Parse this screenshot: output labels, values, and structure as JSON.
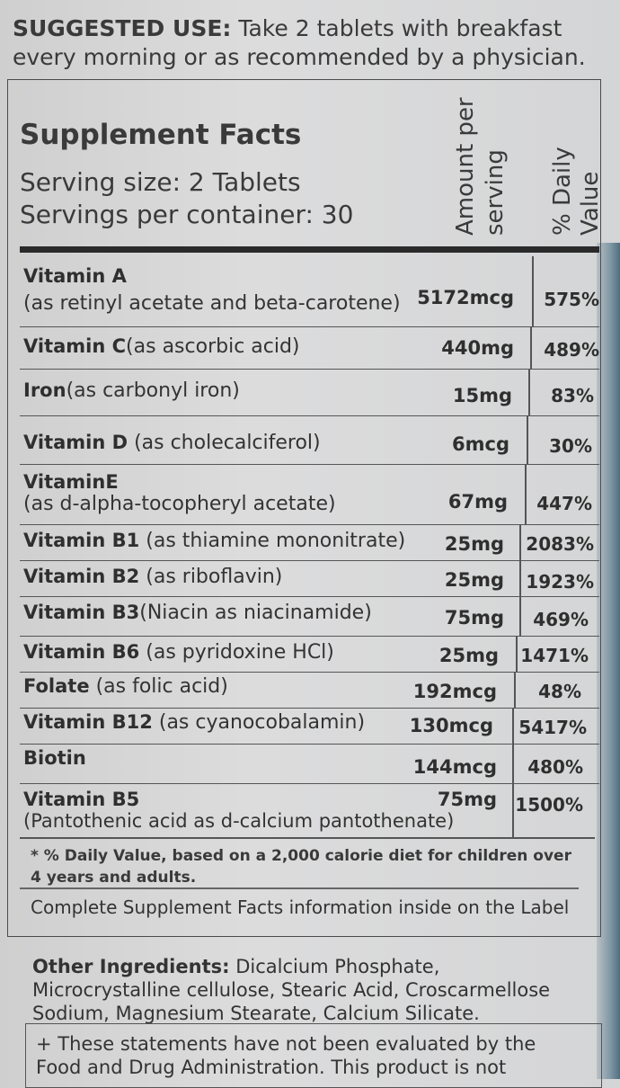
{
  "suggested_use": {
    "label": "SUGGESTED USE:",
    "text": " Take 2 tablets with breakfast every morning or as recommended by a physician."
  },
  "facts": {
    "title": "Supplement Facts",
    "serving_size": "Serving size: 2 Tablets",
    "servings_per_container": "Servings per container: 30",
    "col_amount_line1": "Amount per",
    "col_amount_line2": "serving",
    "col_dv_line1": "% Daily",
    "col_dv_line2": "Value"
  },
  "rows": [
    {
      "name": "Vitamin A",
      "desc": "(as retinyl acetate and beta-carotene)",
      "amount": "5172mcg",
      "dv": "575%"
    },
    {
      "name": "Vitamin C",
      "desc": "(as ascorbic acid)",
      "amount": "440mg",
      "dv": "489%"
    },
    {
      "name": "Iron",
      "desc": "(as carbonyl iron)",
      "amount": "15mg",
      "dv": "83%"
    },
    {
      "name": "Vitamin D",
      "desc": " (as cholecalciferol)",
      "amount": "6mcg",
      "dv": "30%"
    },
    {
      "name": "VitaminE",
      "desc": "(as d-alpha-tocopheryl acetate)",
      "amount": "67mg",
      "dv": "447%"
    },
    {
      "name": "Vitamin B1",
      "desc": " (as thiamine mononitrate)",
      "amount": "25mg",
      "dv": "2083%"
    },
    {
      "name": "Vitamin B2",
      "desc": " (as riboflavin)",
      "amount": "25mg",
      "dv": "1923%"
    },
    {
      "name": "Vitamin B3",
      "desc": "(Niacin as niacinamide)",
      "amount": "75mg",
      "dv": "469%"
    },
    {
      "name": "Vitamin B6",
      "desc": "  (as pyridoxine HCl)",
      "amount": "25mg",
      "dv": "1471%"
    },
    {
      "name": "Folate",
      "desc": " (as folic acid)",
      "amount": "192mcg",
      "dv": "48%"
    },
    {
      "name": "Vitamin B12",
      "desc": "  (as cyanocobalamin)",
      "amount": "130mcg",
      "dv": "5417%"
    },
    {
      "name": "Biotin",
      "desc": "",
      "amount": "144mcg",
      "dv": "480%"
    },
    {
      "name": "Vitamin B5",
      "desc": "(Pantothenic acid as d-calcium pantothenate)",
      "amount": "75mg",
      "dv": "1500%"
    }
  ],
  "footnote": "* % Daily Value, based on a 2,000 calorie diet for children over 4 years and adults.",
  "complete_info": "Complete Supplement Facts information inside on the Label",
  "other_ingredients": {
    "label": "Other Ingredients:",
    "text": " Dicalcium Phosphate, Microcrystalline cellulose, Stearic Acid, Croscarmellose Sodium, Magnesium Stearate, Calcium Silicate."
  },
  "statement": "+ These statements have not been evaluated by the Food and Drug Administration. This product is not"
}
